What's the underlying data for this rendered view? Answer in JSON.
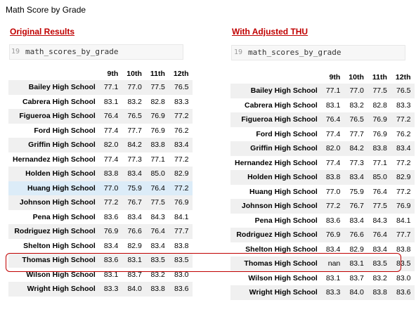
{
  "title": "Math Score by Grade",
  "left": {
    "section_title": "Original Results",
    "cell_number": "19",
    "cell_code": "math_scores_by_grade"
  },
  "right": {
    "section_title": "With Adjusted THU",
    "cell_number": "19",
    "cell_code": "math_scores_by_grade"
  },
  "columns": [
    "9th",
    "10th",
    "11th",
    "12th"
  ],
  "original_rows": [
    {
      "school": "Bailey High School",
      "values": [
        "77.1",
        "77.0",
        "77.5",
        "76.5"
      ]
    },
    {
      "school": "Cabrera High School",
      "values": [
        "83.1",
        "83.2",
        "82.8",
        "83.3"
      ]
    },
    {
      "school": "Figueroa High School",
      "values": [
        "76.4",
        "76.5",
        "76.9",
        "77.2"
      ]
    },
    {
      "school": "Ford High School",
      "values": [
        "77.4",
        "77.7",
        "76.9",
        "76.2"
      ]
    },
    {
      "school": "Griffin High School",
      "values": [
        "82.0",
        "84.2",
        "83.8",
        "83.4"
      ]
    },
    {
      "school": "Hernandez High School",
      "values": [
        "77.4",
        "77.3",
        "77.1",
        "77.2"
      ]
    },
    {
      "school": "Holden High School",
      "values": [
        "83.8",
        "83.4",
        "85.0",
        "82.9"
      ]
    },
    {
      "school": "Huang High School",
      "values": [
        "77.0",
        "75.9",
        "76.4",
        "77.2"
      ]
    },
    {
      "school": "Johnson High School",
      "values": [
        "77.2",
        "76.7",
        "77.5",
        "76.9"
      ]
    },
    {
      "school": "Pena High School",
      "values": [
        "83.6",
        "83.4",
        "84.3",
        "84.1"
      ]
    },
    {
      "school": "Rodriguez High School",
      "values": [
        "76.9",
        "76.6",
        "76.4",
        "77.7"
      ]
    },
    {
      "school": "Shelton High School",
      "values": [
        "83.4",
        "82.9",
        "83.4",
        "83.8"
      ]
    },
    {
      "school": "Thomas High School",
      "values": [
        "83.6",
        "83.1",
        "83.5",
        "83.5"
      ]
    },
    {
      "school": "Wilson High School",
      "values": [
        "83.1",
        "83.7",
        "83.2",
        "83.0"
      ]
    },
    {
      "school": "Wright High School",
      "values": [
        "83.3",
        "84.0",
        "83.8",
        "83.6"
      ]
    }
  ],
  "adjusted_rows": [
    {
      "school": "Bailey High School",
      "values": [
        "77.1",
        "77.0",
        "77.5",
        "76.5"
      ]
    },
    {
      "school": "Cabrera High School",
      "values": [
        "83.1",
        "83.2",
        "82.8",
        "83.3"
      ]
    },
    {
      "school": "Figueroa High School",
      "values": [
        "76.4",
        "76.5",
        "76.9",
        "77.2"
      ]
    },
    {
      "school": "Ford High School",
      "values": [
        "77.4",
        "77.7",
        "76.9",
        "76.2"
      ]
    },
    {
      "school": "Griffin High School",
      "values": [
        "82.0",
        "84.2",
        "83.8",
        "83.4"
      ]
    },
    {
      "school": "Hernandez High School",
      "values": [
        "77.4",
        "77.3",
        "77.1",
        "77.2"
      ]
    },
    {
      "school": "Holden High School",
      "values": [
        "83.8",
        "83.4",
        "85.0",
        "82.9"
      ]
    },
    {
      "school": "Huang High School",
      "values": [
        "77.0",
        "75.9",
        "76.4",
        "77.2"
      ]
    },
    {
      "school": "Johnson High School",
      "values": [
        "77.2",
        "76.7",
        "77.5",
        "76.9"
      ]
    },
    {
      "school": "Pena High School",
      "values": [
        "83.6",
        "83.4",
        "84.3",
        "84.1"
      ]
    },
    {
      "school": "Rodriguez High School",
      "values": [
        "76.9",
        "76.6",
        "76.4",
        "77.7"
      ]
    },
    {
      "school": "Shelton High School",
      "values": [
        "83.4",
        "82.9",
        "83.4",
        "83.8"
      ]
    },
    {
      "school": "Thomas High School",
      "values": [
        "nan",
        "83.1",
        "83.5",
        "83.5"
      ]
    },
    {
      "school": "Wilson High School",
      "values": [
        "83.1",
        "83.7",
        "83.2",
        "83.0"
      ]
    },
    {
      "school": "Wright High School",
      "values": [
        "83.3",
        "84.0",
        "83.8",
        "83.6"
      ]
    }
  ],
  "highlight_color": "#c00000"
}
